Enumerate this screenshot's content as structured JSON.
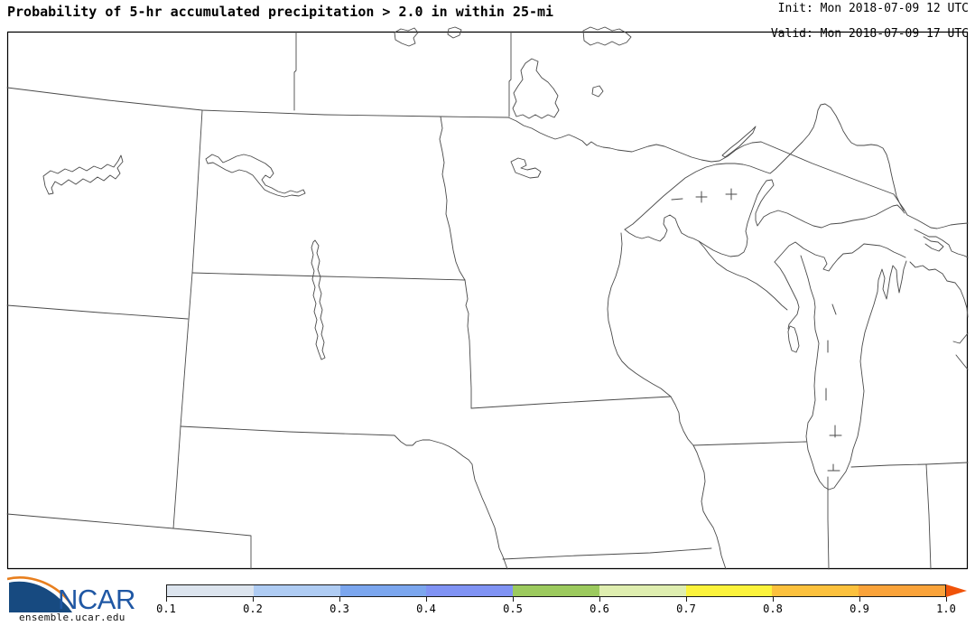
{
  "header": {
    "title": "Probability of 5-hr accumulated precipitation > 2.0 in within 25-mi",
    "init": "Init: Mon 2018-07-09 12 UTC",
    "valid": "Valid: Mon 2018-07-09 17 UTC"
  },
  "footer": {
    "logo": "NCAR",
    "site": "ensemble.ucar.edu"
  },
  "colors": {
    "logo_navy": "#174a80",
    "logo_orange": "#e87f1e",
    "logo_text_blue": "#1f57a4",
    "map_line": "#4a4a4a",
    "frame": "#000000"
  },
  "chart_data": {
    "type": "map",
    "title": "Probability of 5-hr accumulated precipitation > 2.0 in within 25-mi",
    "init_time": "Mon 2018-07-09 12 UTC",
    "valid_time": "Mon 2018-07-09 17 UTC",
    "shaded_probability_regions": "none visible (map area is entirely white)",
    "map_features": [
      "US-Canada border",
      "state borders (MT, WY, CO, ND, SD, NE, MN, IA, MO, WI, IL, IN, OH, MI)",
      "Lake Superior",
      "Isle Royale",
      "Lake Michigan",
      "Green Bay",
      "Lake Huron",
      "Lake of the Woods",
      "Upper and Lower Red Lake",
      "Lake Winnebago",
      "Fort Peck Lake",
      "Lake Sakakawea",
      "Lake Oahe (Missouri River)",
      "Red River",
      "Mississippi River",
      "Missouri River"
    ],
    "colorbar": {
      "ticks": [
        "0.1",
        "0.2",
        "0.3",
        "0.4",
        "0.5",
        "0.6",
        "0.7",
        "0.8",
        "0.9",
        "1.0"
      ],
      "range": [
        0.1,
        1.0
      ],
      "segment_colors": [
        "#dce4ee",
        "#afccf3",
        "#7ba6ee",
        "#8093f4",
        "#9cca5e",
        "#dfeeb0",
        "#fcf33c",
        "#fcc13d",
        "#faa33a"
      ],
      "arrow_color": "#f05309"
    }
  }
}
